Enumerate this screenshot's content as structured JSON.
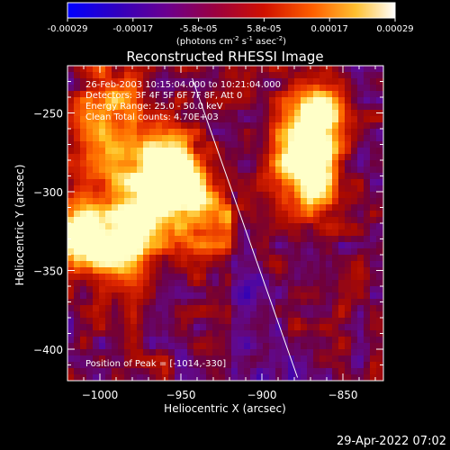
{
  "colorbar": {
    "ticks": [
      "-0.00029",
      "-0.00017",
      "-5.8e-05",
      "5.8e-05",
      "0.00017",
      "0.00029"
    ],
    "units_prefix": "(photons cm",
    "units_sup1": "-2",
    "units_mid": " s",
    "units_sup2": "-1",
    "units_asec": " asec",
    "units_sup3": "-2",
    "units_suffix": ")"
  },
  "chart_data": {
    "type": "heatmap",
    "title": "Reconstructed RHESSI Image",
    "xlabel": "Heliocentric X (arcsec)",
    "ylabel": "Heliocentric Y (arcsec)",
    "xlim": [
      -1020,
      -825
    ],
    "ylim": [
      -420,
      -220
    ],
    "xticks": [
      -1000,
      -950,
      -900,
      -850
    ],
    "xtick_labels": [
      "−1000",
      "−950",
      "−900",
      "−850"
    ],
    "yticks": [
      -250,
      -300,
      -350,
      -400
    ],
    "ytick_labels": [
      "−250",
      "−300",
      "−350",
      "−400"
    ],
    "colorscale": [
      "#0000ff",
      "#3a00b0",
      "#6a0090",
      "#9a0020",
      "#d01000",
      "#ff5000",
      "#ffa000",
      "#ffe060",
      "#ffffff"
    ],
    "bright_sources": [
      {
        "x": -960,
        "y": -280,
        "level": 0.95
      },
      {
        "x": -975,
        "y": -315,
        "level": 0.9
      },
      {
        "x": -950,
        "y": -300,
        "level": 0.75
      },
      {
        "x": -995,
        "y": -280,
        "level": 0.7
      },
      {
        "x": -1014,
        "y": -330,
        "level": 1.0
      },
      {
        "x": -985,
        "y": -345,
        "level": 0.6
      },
      {
        "x": -865,
        "y": -250,
        "level": 0.9
      },
      {
        "x": -875,
        "y": -275,
        "level": 0.8
      },
      {
        "x": -870,
        "y": -295,
        "level": 0.6
      },
      {
        "x": -995,
        "y": -240,
        "level": 0.55
      },
      {
        "x": -930,
        "y": -320,
        "level": 0.55
      }
    ],
    "limb_line": {
      "x": [
        -943,
        -878
      ],
      "y": [
        -228,
        -418
      ]
    },
    "annotations": [
      "26-Feb-2003 10:15:04.000 to 10:21:04.000",
      "Detectors: 3F 4F 5F 6F 7F 8F, Att 0",
      "Energy Range: 25.0 - 50.0 keV",
      "Clean     Total counts: 4.70E+03"
    ],
    "peak_label": "Position of Peak = [-1014,-330]"
  },
  "timestamp": "29-Apr-2022 07:02"
}
